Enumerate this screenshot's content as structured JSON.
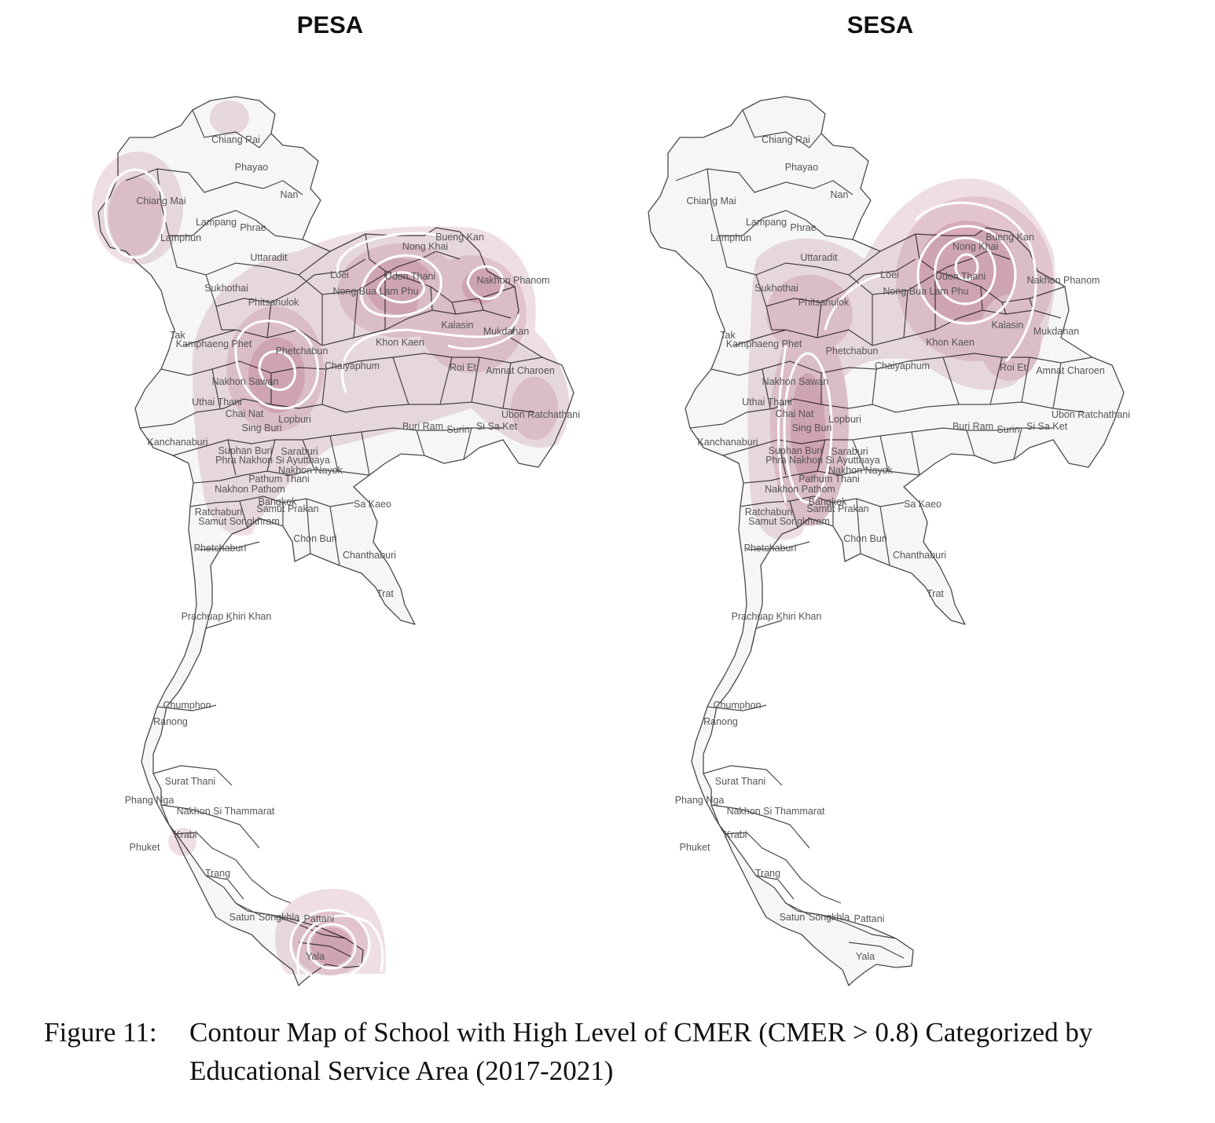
{
  "panels": [
    {
      "title": "PESA",
      "hotspots": [
        {
          "province": "Chiang Mai",
          "level": 2
        },
        {
          "province": "Phetchabun",
          "level": 3
        },
        {
          "province": "Udon Thani",
          "level": 3
        },
        {
          "province": "Nakhon Phanom",
          "level": 2
        },
        {
          "province": "Kalasin",
          "level": 2
        },
        {
          "province": "Pattani",
          "level": 3
        },
        {
          "province": "Krabi",
          "level": 1
        }
      ]
    },
    {
      "title": "SESA",
      "hotspots": [
        {
          "province": "Udon Thani",
          "level": 3
        },
        {
          "province": "Nakhon Sawan",
          "level": 2
        },
        {
          "province": "Phitsanulok",
          "level": 1
        },
        {
          "province": "Kalasin",
          "level": 2
        }
      ]
    }
  ],
  "provinces": [
    "Chiang Rai",
    "Phayao",
    "Nan",
    "Chiang Mai",
    "Lampang",
    "Phrae",
    "Lamphun",
    "Uttaradit",
    "Sukhothai",
    "Phitsanulok",
    "Loei",
    "Nong Khai",
    "Bueng Kan",
    "Udon Thani",
    "Nong Bua Lam Phu",
    "Nakhon Phanom",
    "Tak",
    "Kamphaeng Phet",
    "Phetchabun",
    "Khon Kaen",
    "Kalasin",
    "Mukdahan",
    "Chaiyaphum",
    "Roi Et",
    "Amnat Charoen",
    "Nakhon Sawan",
    "Uthai Thani",
    "Chai Nat",
    "Lopburi",
    "Ubon Ratchathani",
    "Sing Buri",
    "Buri Ram",
    "Surin",
    "Si Sa Ket",
    "Kanchanaburi",
    "Suphan Buri",
    "Saraburi",
    "Phra Nakhon Si Ayutthaya",
    "Nakhon Nayok",
    "Pathum Thani",
    "Nakhon Pathom",
    "Bangkok",
    "Sa Kaeo",
    "Ratchaburi",
    "Samut Prakan",
    "Samut Songkhram",
    "Chon Buri",
    "Phetchaburi",
    "Chanthaburi",
    "Trat",
    "Prachuap Khiri Khan",
    "Chumphon",
    "Ranong",
    "Surat Thani",
    "Phang Nga",
    "Nakhon Si Thammarat",
    "Krabi",
    "Phuket",
    "Trang",
    "Satun",
    "Songkhla",
    "Pattani",
    "Yala"
  ],
  "caption": {
    "number": "Figure 11:",
    "text": "Contour Map of School with High Level of CMER (CMER > 0.8) Categorized by Educational Service Area (2017-2021)"
  }
}
